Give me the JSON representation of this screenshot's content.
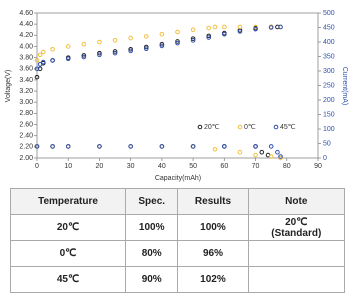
{
  "chart_data": {
    "type": "scatter",
    "x_label": "Capacity(mAh)",
    "y_label": "Voltage(V)",
    "y2_label": "Current(mA)",
    "xlim": [
      0,
      90
    ],
    "xticks": [
      0,
      10,
      20,
      30,
      40,
      50,
      60,
      70,
      80,
      90
    ],
    "ylim": [
      2,
      4.6
    ],
    "yticks": [
      {
        "value": 2,
        "label": "2.00"
      },
      {
        "value": 2.2,
        "label": "2.20"
      },
      {
        "value": 2.4,
        "label": "2.40"
      },
      {
        "value": 2.6,
        "label": "2.60"
      },
      {
        "value": 2.8,
        "label": "2.80"
      },
      {
        "value": 3,
        "label": "3.00"
      },
      {
        "value": 3.2,
        "label": "3.20"
      },
      {
        "value": 3.4,
        "label": "3.40"
      },
      {
        "value": 3.6,
        "label": "3.60"
      },
      {
        "value": 3.8,
        "label": "3.80"
      },
      {
        "value": 4,
        "label": "4.00"
      },
      {
        "value": 4.2,
        "label": "4.20"
      },
      {
        "value": 4.4,
        "label": "4.40"
      },
      {
        "value": 4.6,
        "label": "4.60"
      }
    ],
    "y2lim": [
      0,
      500
    ],
    "y2ticks": [
      0,
      50,
      100,
      150,
      200,
      250,
      300,
      350,
      400,
      450,
      500
    ],
    "series": [
      {
        "name": "20℃",
        "color": "#222222",
        "x": [
          0,
          1,
          2,
          5,
          10,
          15,
          20,
          25,
          30,
          35,
          40,
          45,
          50,
          55,
          60,
          65,
          70,
          75,
          77
        ],
        "values": [
          3.45,
          3.6,
          3.7,
          3.75,
          3.8,
          3.84,
          3.88,
          3.91,
          3.95,
          3.99,
          4.04,
          4.09,
          4.14,
          4.19,
          4.24,
          4.29,
          4.33,
          4.35,
          4.35
        ]
      },
      {
        "name": "0℃",
        "color": "#f0c040",
        "x": [
          0,
          1,
          2,
          5,
          10,
          15,
          20,
          25,
          30,
          35,
          40,
          45,
          50,
          55,
          57,
          60,
          65,
          70,
          75,
          78
        ],
        "values": [
          3.75,
          3.85,
          3.9,
          3.95,
          4.0,
          4.04,
          4.08,
          4.11,
          4.15,
          4.18,
          4.22,
          4.26,
          4.3,
          4.33,
          4.35,
          4.35,
          4.35,
          4.35,
          4.35,
          4.35
        ]
      },
      {
        "name": "45℃",
        "color": "#3050b0",
        "x": [
          0,
          1,
          2,
          5,
          10,
          15,
          20,
          25,
          30,
          35,
          40,
          45,
          50,
          55,
          60,
          65,
          70,
          75,
          78
        ],
        "values": [
          3.6,
          3.68,
          3.72,
          3.75,
          3.78,
          3.81,
          3.85,
          3.88,
          3.92,
          3.96,
          4.01,
          4.06,
          4.11,
          4.16,
          4.22,
          4.27,
          4.31,
          4.34,
          4.35
        ]
      },
      {
        "color": "#222222",
        "axis": "y2",
        "x": [
          0,
          5,
          10,
          20,
          30,
          40,
          50,
          60,
          70,
          72,
          74
        ],
        "values": [
          40,
          40,
          40,
          40,
          40,
          40,
          40,
          40,
          40,
          20,
          10
        ]
      },
      {
        "color": "#f0c040",
        "axis": "y2",
        "x": [
          0,
          5,
          10,
          20,
          30,
          40,
          50,
          57,
          65,
          70,
          75,
          78
        ],
        "values": [
          40,
          40,
          40,
          40,
          40,
          40,
          40,
          30,
          20,
          10,
          5,
          0
        ]
      },
      {
        "color": "#3050b0",
        "axis": "y2",
        "x": [
          0,
          5,
          10,
          20,
          30,
          40,
          50,
          60,
          70,
          75,
          77,
          78
        ],
        "values": [
          40,
          40,
          40,
          40,
          40,
          40,
          40,
          40,
          40,
          40,
          20,
          5
        ]
      }
    ]
  },
  "table": {
    "header": [
      "Temperature",
      "Spec.",
      "Results",
      "Note"
    ],
    "rows": [
      [
        "20℃",
        "100%",
        "100%",
        "20℃\n(Standard)"
      ],
      [
        "0℃",
        "80%",
        "96%"
      ],
      [
        "45℃",
        "90%",
        "102%"
      ]
    ]
  }
}
